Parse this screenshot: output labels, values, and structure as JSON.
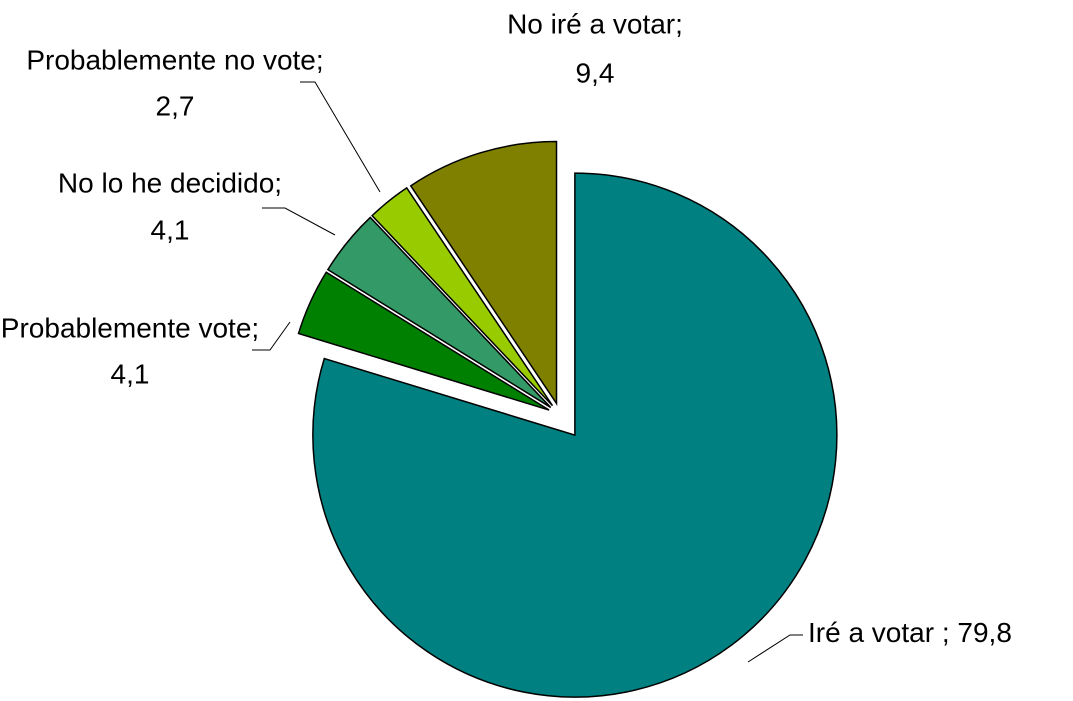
{
  "chart_data": {
    "type": "pie",
    "categories": [
      "Iré a votar ;",
      "Probablemente vote;",
      "No lo he decidido;",
      "Probablemente no vote;",
      "No iré a votar;"
    ],
    "values": [
      79.8,
      4.1,
      4.1,
      2.7,
      9.4
    ],
    "value_labels": [
      "79,8",
      "4,1",
      "4,1",
      "2,7",
      "9,4"
    ],
    "colors": [
      "#008080",
      "#008000",
      "#339966",
      "#99cc00",
      "#808000"
    ]
  }
}
